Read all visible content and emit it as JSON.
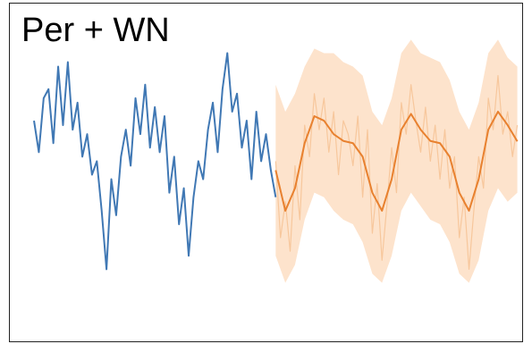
{
  "chart_data": {
    "type": "line",
    "title": "Per + WN",
    "xlim": [
      -5,
      101
    ],
    "ylim": [
      -4.5,
      3
    ],
    "bands": [
      {
        "color": "#fde3cc",
        "x": [
          50,
          52,
          54,
          56,
          58,
          60,
          62,
          64,
          66,
          68,
          70,
          72,
          74,
          76,
          78,
          80,
          82,
          84,
          86,
          88,
          90,
          92,
          94,
          96,
          98,
          100
        ],
        "upper": [
          1.2,
          0.6,
          1.0,
          1.6,
          2.0,
          1.9,
          1.9,
          1.7,
          1.6,
          1.4,
          0.6,
          0.3,
          0.9,
          1.9,
          2.2,
          1.9,
          1.8,
          1.7,
          1.3,
          0.6,
          0.2,
          0.8,
          1.9,
          2.2,
          1.8,
          1.6
        ],
        "lower": [
          -2.6,
          -3.2,
          -2.8,
          -1.8,
          -1.2,
          -1.3,
          -1.6,
          -1.8,
          -1.9,
          -2.3,
          -3.0,
          -3.2,
          -2.6,
          -1.6,
          -1.2,
          -1.5,
          -1.8,
          -1.9,
          -2.3,
          -3.0,
          -3.2,
          -2.7,
          -1.6,
          -1.1,
          -1.4,
          -1.2
        ]
      }
    ],
    "series": [
      {
        "color": "#f7c79c",
        "width": 1.2,
        "x": [
          50,
          51,
          52,
          53,
          54,
          55,
          56,
          57,
          58,
          59,
          60,
          61,
          62,
          63,
          64,
          65,
          66,
          67,
          68,
          69,
          70,
          71,
          72,
          73,
          74,
          75,
          76,
          77,
          78,
          79,
          80,
          81,
          82,
          83,
          84,
          85,
          86,
          87,
          88,
          89,
          90,
          91,
          92,
          93,
          94,
          95,
          96,
          97,
          98,
          99,
          100
        ],
        "values": [
          -0.5,
          -2.2,
          -1.4,
          -2.5,
          -0.6,
          -1.8,
          0.3,
          -0.4,
          1.0,
          0.2,
          0.9,
          -0.3,
          0.6,
          -0.8,
          0.4,
          0.1,
          -0.6,
          0.5,
          -1.3,
          0.2,
          -2.1,
          -1.0,
          -2.7,
          -1.5,
          -0.2,
          -1.2,
          0.8,
          0.1,
          1.2,
          0.4,
          -0.3,
          0.7,
          -0.5,
          0.3,
          -0.9,
          0.2,
          -1.1,
          -0.4,
          -2.2,
          -1.3,
          -2.9,
          -1.6,
          -0.4,
          -1.1,
          0.9,
          0.2,
          1.4,
          0.1,
          0.6,
          -0.4,
          0.3
        ]
      },
      {
        "color": "#4078b4",
        "width": 2,
        "x": [
          0,
          1,
          2,
          3,
          4,
          5,
          6,
          7,
          8,
          9,
          10,
          11,
          12,
          13,
          14,
          15,
          16,
          17,
          18,
          19,
          20,
          21,
          22,
          23,
          24,
          25,
          26,
          27,
          28,
          29,
          30,
          31,
          32,
          33,
          34,
          35,
          36,
          37,
          38,
          39,
          40,
          41,
          42,
          43,
          44,
          45,
          46,
          47,
          48,
          49,
          50
        ],
        "values": [
          0.4,
          -0.3,
          0.9,
          1.1,
          -0.1,
          1.6,
          0.3,
          1.7,
          0.2,
          0.8,
          -0.4,
          0.1,
          -0.8,
          -0.5,
          -1.6,
          -2.9,
          -0.9,
          -1.7,
          -0.4,
          0.2,
          -0.6,
          0.9,
          0.1,
          1.2,
          -0.2,
          0.7,
          -0.3,
          0.5,
          -1.2,
          -0.4,
          -1.9,
          -1.1,
          -2.6,
          -1.3,
          -0.5,
          -0.9,
          0.2,
          0.8,
          -0.3,
          1.1,
          1.9,
          0.6,
          1.0,
          -0.2,
          0.4,
          -0.9,
          0.6,
          -0.5,
          0.1,
          -0.7,
          -1.3
        ]
      },
      {
        "color": "#e8812f",
        "width": 2,
        "x": [
          50,
          52,
          54,
          56,
          58,
          60,
          62,
          64,
          66,
          68,
          70,
          72,
          74,
          76,
          78,
          80,
          82,
          84,
          86,
          88,
          90,
          92,
          94,
          96,
          98,
          100
        ],
        "values": [
          -0.7,
          -1.6,
          -1.1,
          -0.1,
          0.5,
          0.4,
          0.1,
          -0.05,
          -0.1,
          -0.4,
          -1.2,
          -1.6,
          -0.9,
          0.2,
          0.55,
          0.2,
          -0.05,
          -0.1,
          -0.4,
          -1.2,
          -1.6,
          -0.9,
          0.2,
          0.6,
          0.3,
          -0.06
        ]
      }
    ]
  }
}
